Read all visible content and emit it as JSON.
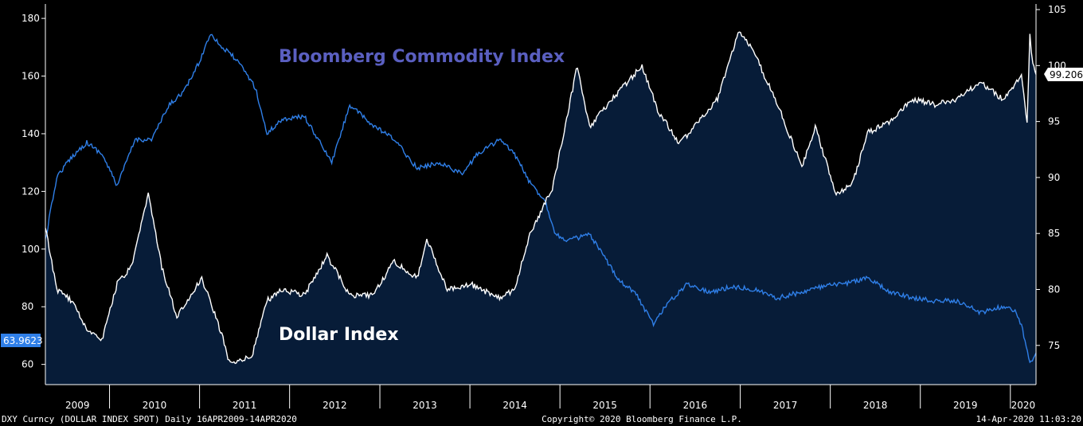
{
  "chart_data": {
    "type": "line",
    "x_range": [
      "2009-04-16",
      "2020-04-14"
    ],
    "x_ticks": [
      "2009",
      "2010",
      "2011",
      "2012",
      "2013",
      "2014",
      "2015",
      "2016",
      "2017",
      "2018",
      "2019",
      "2020"
    ],
    "left_axis": {
      "ticks": [
        "60",
        "80",
        "100",
        "120",
        "140",
        "160",
        "180"
      ],
      "ylim": [
        53,
        185
      ]
    },
    "right_axis": {
      "ticks": [
        "75",
        "80",
        "85",
        "90",
        "95",
        "100",
        "105"
      ],
      "ylim": [
        71.5,
        105.5
      ]
    },
    "series": [
      {
        "name": "Bloomberg Commodity Index",
        "axis": "left",
        "color": "#2f7fe8",
        "last_value_label": "63.9623",
        "points": [
          [
            "2009-04-16",
            103
          ],
          [
            "2009-06-01",
            125
          ],
          [
            "2009-08-01",
            132
          ],
          [
            "2009-10-01",
            137
          ],
          [
            "2009-12-01",
            133
          ],
          [
            "2010-02-01",
            122
          ],
          [
            "2010-04-15",
            138
          ],
          [
            "2010-06-20",
            138
          ],
          [
            "2010-09-01",
            150
          ],
          [
            "2010-11-01",
            155
          ],
          [
            "2011-01-01",
            165
          ],
          [
            "2011-02-15",
            175
          ],
          [
            "2011-04-01",
            170
          ],
          [
            "2011-05-15",
            167
          ],
          [
            "2011-07-01",
            162
          ],
          [
            "2011-08-15",
            156
          ],
          [
            "2011-10-01",
            140
          ],
          [
            "2011-12-01",
            145
          ],
          [
            "2012-03-01",
            146
          ],
          [
            "2012-06-20",
            130
          ],
          [
            "2012-09-01",
            150
          ],
          [
            "2012-12-01",
            143
          ],
          [
            "2013-03-01",
            138
          ],
          [
            "2013-06-01",
            128
          ],
          [
            "2013-09-01",
            130
          ],
          [
            "2013-12-01",
            126
          ],
          [
            "2014-02-01",
            133
          ],
          [
            "2014-05-01",
            138
          ],
          [
            "2014-07-01",
            133
          ],
          [
            "2014-09-01",
            123
          ],
          [
            "2014-11-01",
            117
          ],
          [
            "2014-12-15",
            105
          ],
          [
            "2015-02-01",
            103
          ],
          [
            "2015-05-01",
            105
          ],
          [
            "2015-07-01",
            97
          ],
          [
            "2015-09-01",
            89
          ],
          [
            "2015-11-01",
            85
          ],
          [
            "2016-01-15",
            74
          ],
          [
            "2016-03-01",
            80
          ],
          [
            "2016-06-01",
            88
          ],
          [
            "2016-09-01",
            85
          ],
          [
            "2016-12-01",
            87
          ],
          [
            "2017-03-01",
            86
          ],
          [
            "2017-06-01",
            83
          ],
          [
            "2017-09-01",
            85
          ],
          [
            "2017-12-01",
            87
          ],
          [
            "2018-03-01",
            88
          ],
          [
            "2018-06-01",
            90
          ],
          [
            "2018-09-01",
            85
          ],
          [
            "2018-12-01",
            83
          ],
          [
            "2019-03-01",
            82
          ],
          [
            "2019-06-01",
            82
          ],
          [
            "2019-09-01",
            78
          ],
          [
            "2019-12-01",
            80
          ],
          [
            "2020-01-15",
            79
          ],
          [
            "2020-02-15",
            74
          ],
          [
            "2020-03-20",
            60
          ],
          [
            "2020-04-14",
            64
          ]
        ]
      },
      {
        "name": "Dollar Index",
        "axis": "right",
        "color": "#ffffff",
        "fill": "#071c38",
        "last_value_label": "99.206",
        "points": [
          [
            "2009-04-16",
            85.5
          ],
          [
            "2009-06-01",
            80
          ],
          [
            "2009-08-01",
            79
          ],
          [
            "2009-10-01",
            76.5
          ],
          [
            "2009-12-01",
            75.5
          ],
          [
            "2010-02-01",
            80.5
          ],
          [
            "2010-04-01",
            82
          ],
          [
            "2010-06-07",
            88.5
          ],
          [
            "2010-08-01",
            82
          ],
          [
            "2010-10-01",
            77.5
          ],
          [
            "2011-01-10",
            81
          ],
          [
            "2011-04-01",
            76
          ],
          [
            "2011-05-01",
            73.5
          ],
          [
            "2011-08-01",
            74
          ],
          [
            "2011-10-01",
            79
          ],
          [
            "2011-12-01",
            80
          ],
          [
            "2012-03-01",
            79.5
          ],
          [
            "2012-06-01",
            83
          ],
          [
            "2012-09-01",
            79.5
          ],
          [
            "2012-12-01",
            79.5
          ],
          [
            "2013-03-01",
            82.5
          ],
          [
            "2013-06-01",
            81
          ],
          [
            "2013-07-10",
            84.5
          ],
          [
            "2013-10-01",
            80
          ],
          [
            "2014-01-01",
            80.5
          ],
          [
            "2014-05-01",
            79.2
          ],
          [
            "2014-07-01",
            80
          ],
          [
            "2014-09-01",
            85
          ],
          [
            "2014-12-01",
            89
          ],
          [
            "2015-03-13",
            100
          ],
          [
            "2015-05-01",
            94.5
          ],
          [
            "2015-08-01",
            97
          ],
          [
            "2015-11-30",
            100
          ],
          [
            "2016-02-01",
            96
          ],
          [
            "2016-05-01",
            93
          ],
          [
            "2016-08-01",
            95.5
          ],
          [
            "2016-10-01",
            97
          ],
          [
            "2016-12-28",
            103.2
          ],
          [
            "2017-03-01",
            101
          ],
          [
            "2017-06-01",
            96.5
          ],
          [
            "2017-09-08",
            91
          ],
          [
            "2017-11-01",
            94.5
          ],
          [
            "2018-01-25",
            88.5
          ],
          [
            "2018-04-01",
            89.5
          ],
          [
            "2018-06-01",
            94
          ],
          [
            "2018-09-01",
            95
          ],
          [
            "2018-12-01",
            97
          ],
          [
            "2019-03-01",
            96.5
          ],
          [
            "2019-06-01",
            97
          ],
          [
            "2019-09-01",
            98.5
          ],
          [
            "2019-12-01",
            97
          ],
          [
            "2020-02-15",
            99
          ],
          [
            "2020-03-09",
            95
          ],
          [
            "2020-03-20",
            102.8
          ],
          [
            "2020-04-01",
            100
          ],
          [
            "2020-04-14",
            99.2
          ]
        ]
      }
    ]
  },
  "footer": {
    "left": "DXY Curncy (DOLLAR INDEX SPOT)  Daily 16APR2009-14APR2020",
    "center": "Copyright© 2020 Bloomberg Finance L.P.",
    "right": "14-Apr-2020 11:03:20"
  }
}
